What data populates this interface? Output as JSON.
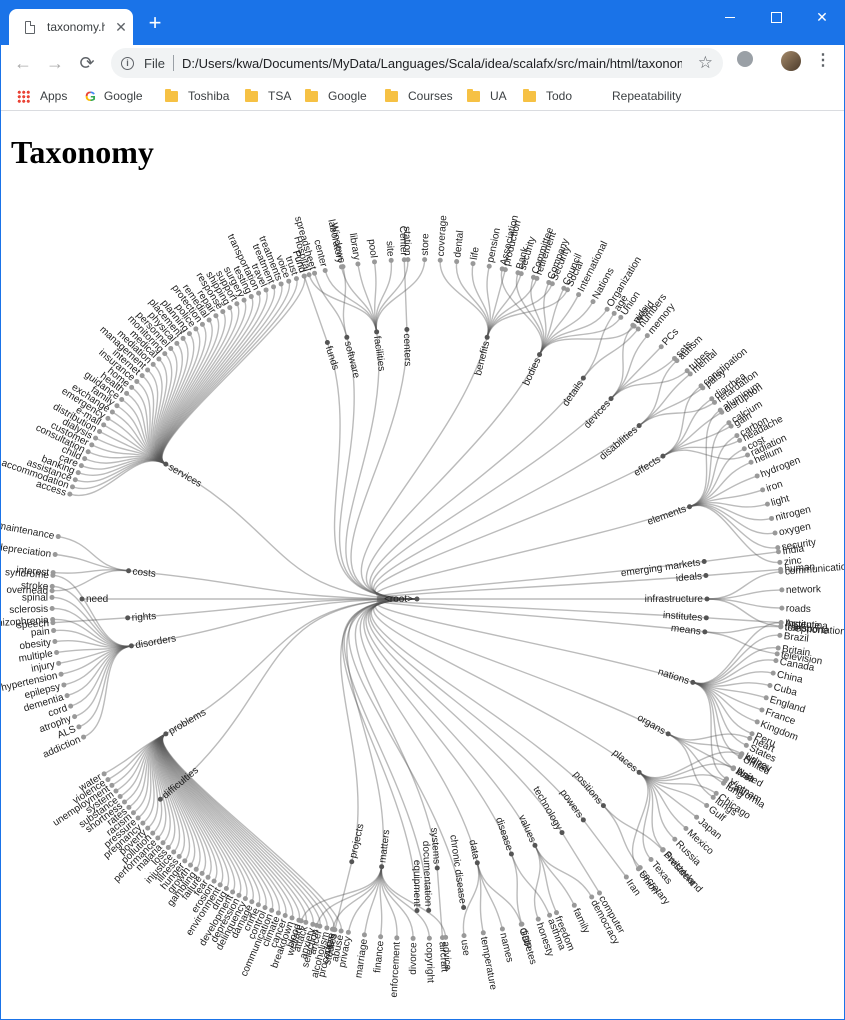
{
  "tab": {
    "title": "taxonomy.html",
    "close_glyph": "✕",
    "new_tab_glyph": "+"
  },
  "window_controls": {
    "minimize": "minimize",
    "maximize": "maximize",
    "close": "✕"
  },
  "toolbar": {
    "back_glyph": "←",
    "forward_glyph": "→",
    "reload_glyph": "⟳",
    "scheme": "File",
    "url": "D:/Users/kwa/Documents/MyData/Languages/Scala/idea/scalafx/src/main/html/taxonomy.html",
    "star_glyph": "☆",
    "menu_glyph": "⋮"
  },
  "bookmarks": [
    {
      "label": "Apps",
      "icon": "apps-grid-icon"
    },
    {
      "label": "Google",
      "icon": "google-icon"
    },
    {
      "label": "Toshiba",
      "icon": "folder-icon"
    },
    {
      "label": "TSA",
      "icon": "folder-icon"
    },
    {
      "label": "Google",
      "icon": "folder-icon"
    },
    {
      "label": "Courses",
      "icon": "folder-icon"
    },
    {
      "label": "UA",
      "icon": "folder-icon"
    },
    {
      "label": "Todo",
      "icon": "folder-icon"
    },
    {
      "label": "Repeatability",
      "icon": "none"
    }
  ],
  "page": {
    "title": "Taxonomy"
  },
  "tree": {
    "root": "<root>",
    "children": [
      {
        "name": "need",
        "angle": 180,
        "children": []
      },
      {
        "name": "costs",
        "angle": 174,
        "children": [
          {
            "name": "overhead",
            "angle": 177
          },
          {
            "name": "interest",
            "angle": 175.3
          },
          {
            "name": "depreciation",
            "angle": 173.6
          },
          {
            "name": "maintenance",
            "angle": 171
          }
        ]
      },
      {
        "name": "services",
        "angle": 150,
        "children": [
          "access",
          "accommodation",
          "assistance",
          "banking",
          "care",
          "child",
          "consultation",
          "customer",
          "dialysis",
          "distribution",
          "e-mail",
          "emergency",
          "exchange",
          "family",
          "guidance",
          "health",
          "home",
          "insurance",
          "internet",
          "management",
          "mediation",
          "medical",
          "monitoring",
          "personnel",
          "physical",
          "placement",
          "planning",
          "police",
          "protection",
          "remedial",
          "repair",
          "response",
          "shipping",
          "support",
          "surgery",
          "testing",
          "transportation",
          "travel",
          "treatment",
          "treatments",
          "voice",
          "trust",
          "Fund"
        ],
        "from": 162,
        "to": 108
      },
      {
        "name": "funds",
        "angle": 108,
        "children": [
          "Fund"
        ],
        "single": true
      },
      {
        "name": "software",
        "angle": 104,
        "children": [
          "spreadsheet",
          "Windows"
        ]
      },
      {
        "name": "facilities",
        "angle": 98,
        "children": [
          "Hospital",
          "center",
          "laboratory",
          "library",
          "pool",
          "site",
          "station",
          "store"
        ]
      },
      {
        "name": "centers",
        "angle": 92,
        "children": [
          "Center"
        ]
      },
      {
        "name": "benefits",
        "angle": 76,
        "children": [
          "coverage",
          "dental",
          "life",
          "pension",
          "production",
          "security",
          "retirement",
          "Security",
          "Social"
        ]
      },
      {
        "name": "bodies",
        "angle": 65,
        "children": [
          "Association",
          "Bank",
          "Committee",
          "Company",
          "Council",
          "International",
          "Nations",
          "Organization",
          "Union",
          "World"
        ]
      },
      {
        "name": "details",
        "angle": 55,
        "children": [
          "age",
          "numbers"
        ]
      },
      {
        "name": "devices",
        "angle": 48,
        "children": [
          "aids",
          "memory",
          "PCs",
          "sets",
          "tubes"
        ]
      },
      {
        "name": "disabilities",
        "angle": 40,
        "children": [
          "autism",
          "mental",
          "palsy",
          "retardation"
        ]
      },
      {
        "name": "effects",
        "angle": 32,
        "children": [
          "constipation",
          "diarrhea",
          "disruption",
          "gain",
          "headache",
          "radiation"
        ]
      },
      {
        "name": "elements",
        "angle": 20,
        "children": [
          "aluminum",
          "calcium",
          "carbon",
          "cost",
          "helium",
          "hydrogen",
          "iron",
          "light",
          "nitrogen",
          "oxygen",
          "security",
          "zinc"
        ]
      },
      {
        "name": "emerging markets",
        "angle": 8,
        "children": [
          "India"
        ]
      },
      {
        "name": "ideals",
        "angle": 5,
        "children": [
          "human"
        ]
      },
      {
        "name": "infrastructure",
        "angle": 0,
        "children": [
          "communications",
          "network",
          "roads",
          "transportation"
        ]
      },
      {
        "name": "institutes",
        "angle": -4,
        "children": [
          "Institute"
        ]
      },
      {
        "name": "means",
        "angle": -7,
        "children": [
          "telephone",
          "television"
        ]
      },
      {
        "name": "nations",
        "angle": -18,
        "children": [
          "Argentina",
          "Brazil",
          "Britain",
          "Canada",
          "China",
          "Cuba",
          "England",
          "France",
          "Kingdom",
          "Peru",
          "States",
          "United",
          "United",
          "Vietnam"
        ]
      },
      {
        "name": "organs",
        "angle": -30,
        "children": [
          "heart",
          "kidney",
          "liver",
          "lung",
          "lungs"
        ]
      },
      {
        "name": "places",
        "angle": -40,
        "children": [
          "Africa",
          "Asia",
          "California",
          "Chicago",
          "Gulf",
          "Japan",
          "Mexico",
          "Russia",
          "Switzerland",
          "Texas",
          "Union"
        ]
      },
      {
        "name": "positions",
        "angle": -50,
        "children": [
          "President",
          "secretary"
        ]
      },
      {
        "name": "powers",
        "angle": -55,
        "children": [
          "Iran"
        ]
      },
      {
        "name": "technology",
        "angle": -60,
        "children": [
          "computer"
        ]
      },
      {
        "name": "values",
        "angle": -66,
        "children": [
          "democracy",
          "family",
          "freedom",
          "honesty"
        ]
      },
      {
        "name": "disease",
        "angle": -71,
        "children": [
          "asthma",
          "diabetes"
        ]
      },
      {
        "name": "data",
        "angle": -78,
        "children": [
          "GDP",
          "names",
          "temperature",
          "use"
        ]
      },
      {
        "name": "chronic disease",
        "angle": -82,
        "children": []
      },
      {
        "name": "systems",
        "angle": -86,
        "children": [
          "aircraft"
        ]
      },
      {
        "name": "documentation",
        "angle": -88,
        "children": []
      },
      {
        "name": "equipment",
        "angle": -90,
        "children": []
      },
      {
        "name": "matters",
        "angle": -97,
        "children": [
          "advice",
          "copyright",
          "divorce",
          "enforcement",
          "finance",
          "marriage",
          "privacy",
          "procedure",
          "selection",
          "welfare"
        ]
      },
      {
        "name": "projects",
        "angle": -103,
        "children": [
          "studies"
        ]
      },
      {
        "name": "difficulties",
        "angle": -140,
        "children": []
      },
      {
        "name": "problems",
        "angle": -150,
        "children": [
          "abuse",
          "AIDS",
          "alcoholism",
          "ancer",
          "anxiety",
          "attack",
          "blood",
          "breakdown",
          "cancer",
          "climate",
          "communication",
          "control",
          "crime",
          "damage",
          "delinquency",
          "depression",
          "development",
          "drug",
          "environment",
          "erosion",
          "fear",
          "failure",
          "gambling",
          "growth",
          "hunger",
          "illness",
          "injustice",
          "loss",
          "malaria",
          "performance",
          "pollution",
          "poverty",
          "pregnancy",
          "pressure",
          "racism",
          "rates",
          "shortness",
          "substance",
          "system",
          "unemployment",
          "violence",
          "water"
        ],
        "from": -102,
        "to": -149
      },
      {
        "name": "disorders",
        "angle": -170,
        "children": [
          "addiction",
          "ALS",
          "atrophy",
          "cord",
          "dementia",
          "epilepsy",
          "hypertension",
          "injury",
          "multiple",
          "obesity",
          "pain",
          "schizophrenia",
          "sclerosis",
          "spinal",
          "stroke",
          "syndrome"
        ]
      },
      {
        "name": "rights",
        "angle": -176,
        "children": [
          "speech"
        ]
      }
    ]
  }
}
